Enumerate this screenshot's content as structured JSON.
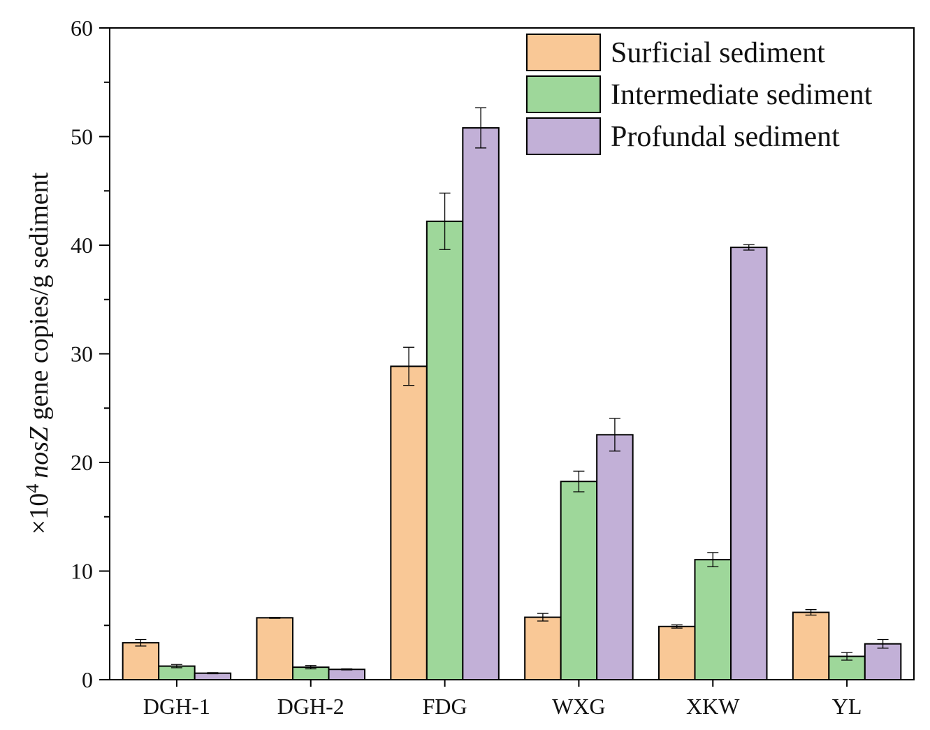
{
  "chart_data": {
    "type": "bar",
    "title": "",
    "xlabel": "",
    "ylabel": {
      "prefix": "×10",
      "exponent": "4",
      "gene": "nosZ",
      "suffix": " gene copies/g sediment"
    },
    "ylim": [
      0,
      60
    ],
    "yticks": [
      0,
      10,
      20,
      30,
      40,
      50,
      60
    ],
    "categories": [
      "DGH-1",
      "DGH-2",
      "FDG",
      "WXG",
      "XKW",
      "YL"
    ],
    "series": [
      {
        "name": "Surficial sediment",
        "color": "#f9c896",
        "values": [
          3.4,
          5.7,
          28.85,
          5.75,
          4.9,
          6.2
        ],
        "errors": [
          0.3,
          0.05,
          1.75,
          0.35,
          0.15,
          0.25
        ]
      },
      {
        "name": "Intermediate sediment",
        "color": "#9ed79a",
        "values": [
          1.25,
          1.15,
          42.2,
          18.25,
          11.05,
          2.15
        ],
        "errors": [
          0.15,
          0.15,
          2.6,
          0.95,
          0.65,
          0.35
        ]
      },
      {
        "name": "Profundal sediment",
        "color": "#c2b0d7",
        "values": [
          0.6,
          0.95,
          50.8,
          22.55,
          39.8,
          3.3
        ],
        "errors": [
          0.05,
          0.05,
          1.85,
          1.5,
          0.25,
          0.4
        ]
      }
    ],
    "legend": "top-right",
    "grid": false
  }
}
